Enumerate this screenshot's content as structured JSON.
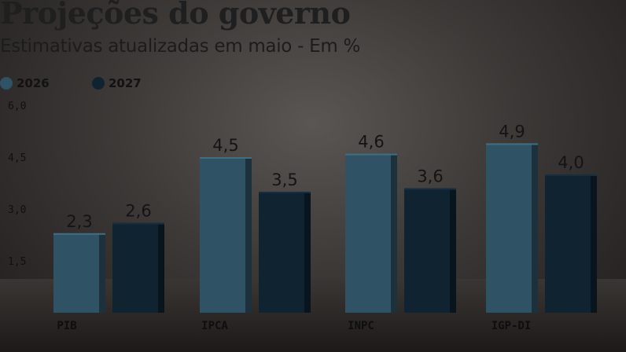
{
  "chart_data": {
    "type": "bar",
    "title": "Projeções do governo",
    "subtitle": "Estimativas atualizadas em maio - Em %",
    "categories": [
      "PIB",
      "IPCA",
      "INPC",
      "IGP-DI"
    ],
    "series": [
      {
        "name": "2026",
        "values": [
          2.3,
          4.5,
          4.6,
          4.9
        ],
        "labels": [
          "2,3",
          "4,5",
          "4,6",
          "4,9"
        ],
        "color": "#2f5264"
      },
      {
        "name": "2027",
        "values": [
          2.6,
          3.5,
          3.6,
          4.0
        ],
        "labels": [
          "2,6",
          "3,5",
          "3,6",
          "4,0"
        ],
        "color": "#0f2331"
      }
    ],
    "yticks": [
      {
        "value": 6.0,
        "label": "6,0"
      },
      {
        "value": 4.5,
        "label": "4,5"
      },
      {
        "value": 3.0,
        "label": "3,0"
      },
      {
        "value": 1.5,
        "label": "1,5"
      }
    ],
    "ylim": [
      0,
      6.0
    ],
    "grid": false,
    "legend": "top-left"
  }
}
